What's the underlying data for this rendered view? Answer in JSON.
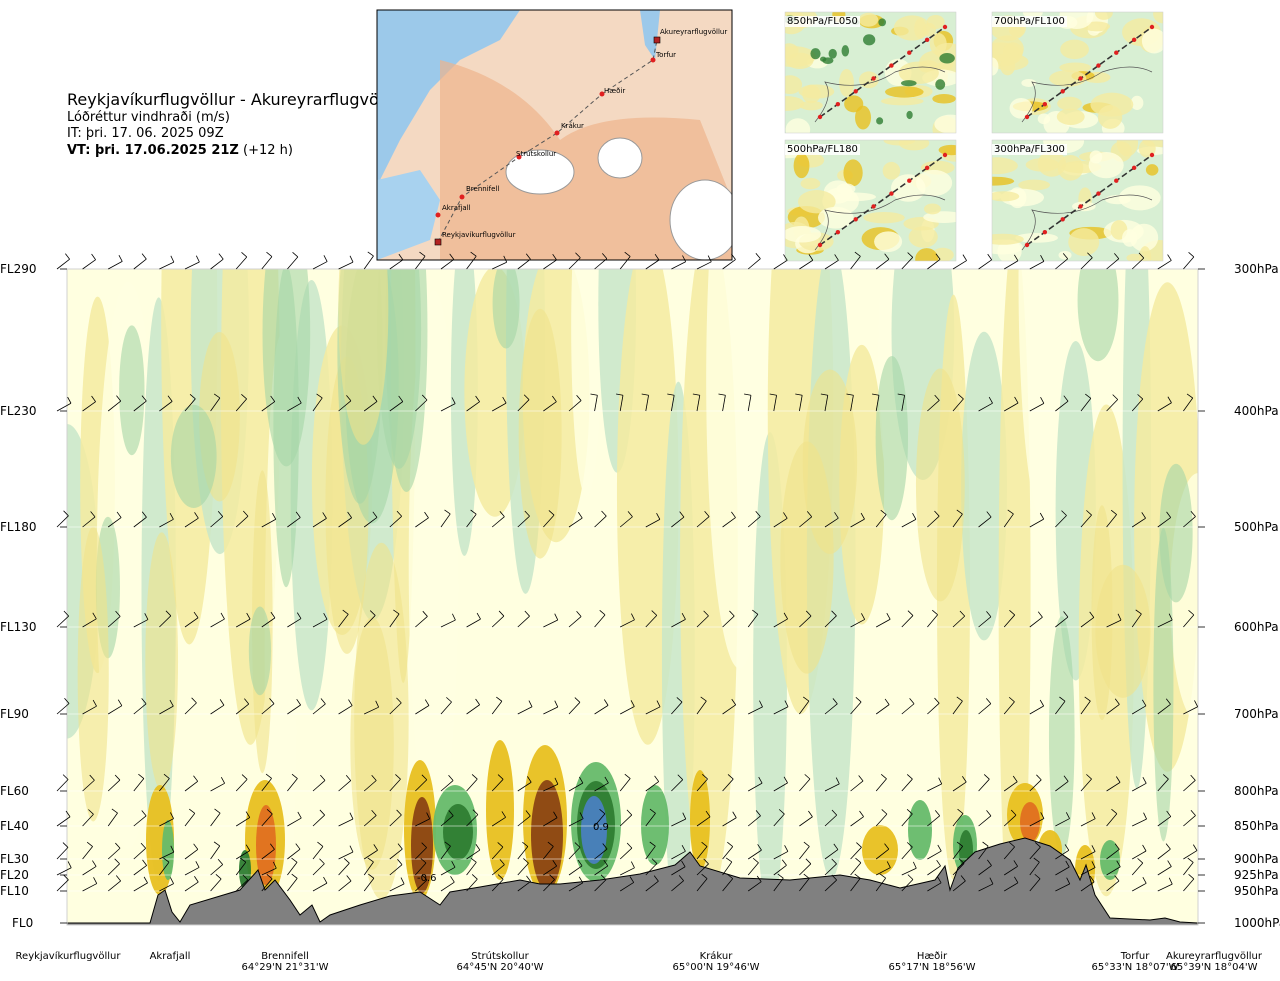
{
  "header": {
    "title": "Reykjavíkurflugvöllur - Akureyrarflugvöllur",
    "subtitle": "Lóðréttur vindhraði (m/s)",
    "it_label": "IT: þri. 17. 06. 2025 09Z",
    "vt_bold": "VT: þri. 17.06.2025 21Z",
    "vt_suffix": " (+12 h)"
  },
  "route_map": {
    "labels": [
      "Akureyrarflugvöllur",
      "Torfur",
      "Hæðir",
      "Krákur",
      "Strútskollur",
      "Brennifell",
      "Akrafjall",
      "Reykjavíkurflugvöllur"
    ]
  },
  "insets": [
    {
      "title": "850hPa/FL050"
    },
    {
      "title": "700hPa/FL100"
    },
    {
      "title": "500hPa/FL180"
    },
    {
      "title": "300hPa/FL300"
    }
  ],
  "chart_data": {
    "type": "heatmap",
    "title": "Lóðréttur vindhraði (m/s)",
    "left_axis": [
      "FL290",
      "FL230",
      "FL180",
      "FL130",
      "FL90",
      "FL60",
      "FL40",
      "FL30",
      "FL20",
      "FL10",
      "FL0"
    ],
    "right_axis": [
      "300hPa",
      "400hPa",
      "500hPa",
      "600hPa",
      "700hPa",
      "800hPa",
      "850hPa",
      "900hPa",
      "925hPa",
      "950hPa",
      "1000hPa"
    ],
    "waypoints": [
      {
        "name": "Reykjavíkurflugvöllur",
        "coord": ""
      },
      {
        "name": "Akrafjall",
        "coord": ""
      },
      {
        "name": "Brennifell",
        "coord": "64°29'N 21°31'W"
      },
      {
        "name": "Strútskollur",
        "coord": "64°45'N 20°40'W"
      },
      {
        "name": "Krákur",
        "coord": "65°00'N 19°46'W"
      },
      {
        "name": "Hæðir",
        "coord": "65°17'N 18°56'W"
      },
      {
        "name": "Torfur",
        "coord": "65°33'N 18°07'W"
      },
      {
        "name": "Akureyrarflugvöllur",
        "coord": "65°39'N 18°04'W"
      }
    ],
    "annotations": [
      "0.9",
      "-0.6"
    ],
    "colors": {
      "strong_up": "#2e7d32",
      "up": "#66bb6a",
      "weak_up": "#c8e6c9",
      "neutral": "#ffffe0",
      "weak_down": "#f5eba0",
      "down": "#e8c020",
      "strong_down": "#8b4513",
      "max_up": "#4a7fc0",
      "terrain": "#808080"
    }
  }
}
